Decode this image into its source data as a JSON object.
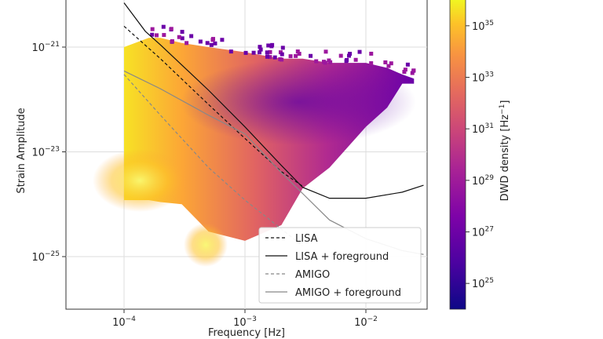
{
  "chart_data": {
    "type": "heatmap",
    "xlabel": "Frequency [Hz]",
    "ylabel": "Strain Amplitude",
    "x_scale": "log",
    "y_scale": "log",
    "xlim": [
      3e-05,
      0.03
    ],
    "ylim": [
      1e-26,
      1e-20
    ],
    "x_ticks": [
      {
        "value": 0.0001,
        "base": "10",
        "exp": "−4"
      },
      {
        "value": 0.001,
        "base": "10",
        "exp": "−3"
      },
      {
        "value": 0.01,
        "base": "10",
        "exp": "−2"
      }
    ],
    "y_ticks": [
      {
        "value": 1e-21,
        "base": "10",
        "exp": "−21"
      },
      {
        "value": 1e-23,
        "base": "10",
        "exp": "−23"
      },
      {
        "value": 1e-25,
        "base": "10",
        "exp": "−25"
      }
    ],
    "grid": true,
    "legend_placement": "bottom-right",
    "colorbar": {
      "label": "DWD density [Hz",
      "label_exp": "−1",
      "label_close": "]",
      "scale": "log",
      "range": [
        1e+24,
        1e+36
      ],
      "colormap": "plasma",
      "ticks": [
        {
          "value": 1e+25,
          "base": "10",
          "exp": "25"
        },
        {
          "value": 1e+27,
          "base": "10",
          "exp": "27"
        },
        {
          "value": 1e+29,
          "base": "10",
          "exp": "29"
        },
        {
          "value": 1e+31,
          "base": "10",
          "exp": "31"
        },
        {
          "value": 1e+33,
          "base": "10",
          "exp": "33"
        },
        {
          "value": 1e+35,
          "base": "10",
          "exp": "35"
        }
      ]
    },
    "series": [
      {
        "name": "LISA",
        "style": "dashed",
        "color": "#111111",
        "x": [
          0.0001,
          0.0002,
          0.0005,
          0.001,
          0.002,
          0.003
        ],
        "y": [
          2.5e-21,
          6e-22,
          8e-23,
          1.8e-23,
          4.2e-24,
          2.2e-24
        ]
      },
      {
        "name": "LISA + foreground",
        "style": "solid",
        "color": "#111111",
        "x": [
          0.0001,
          0.00015,
          0.0002,
          0.0005,
          0.001,
          0.002,
          0.003,
          0.005,
          0.01,
          0.02,
          0.03
        ],
        "y": [
          7e-21,
          2e-21,
          1.1e-21,
          1.5e-22,
          3e-23,
          5.5e-24,
          2.1e-24,
          1.3e-24,
          1.3e-24,
          1.7e-24,
          2.3e-24
        ]
      },
      {
        "name": "AMIGO",
        "style": "dashed",
        "color": "#888888",
        "x": [
          0.0001,
          0.0002,
          0.0005,
          0.001,
          0.003
        ],
        "y": [
          3e-22,
          5e-23,
          5e-24,
          1.2e-24,
          1.6e-25
        ]
      },
      {
        "name": "AMIGO + foreground",
        "style": "solid",
        "color": "#888888",
        "x": [
          0.0001,
          0.0002,
          0.0005,
          0.001,
          0.002,
          0.003,
          0.005,
          0.01,
          0.02,
          0.03
        ],
        "y": [
          3.5e-22,
          1.6e-22,
          5e-23,
          2.2e-23,
          4e-24,
          1.6e-24,
          5e-25,
          2.2e-25,
          1.3e-25,
          1.1e-25
        ]
      }
    ],
    "density_envelope": {
      "x": [
        0.0001,
        0.00016,
        0.0002,
        0.0003,
        0.0005,
        0.001,
        0.002,
        0.003,
        0.005,
        0.01,
        0.015,
        0.02,
        0.025
      ],
      "y_upper": [
        1e-21,
        1.5e-21,
        1.5e-21,
        1.2e-21,
        1e-21,
        8e-22,
        6e-22,
        6e-22,
        5e-22,
        5e-22,
        4e-22,
        3e-22,
        2.5e-22
      ],
      "y_lower": [
        1.2e-24,
        1.2e-24,
        1.1e-24,
        1e-24,
        3e-25,
        2e-25,
        4e-25,
        2e-24,
        5e-24,
        3e-23,
        7e-23,
        2e-22,
        2e-22
      ]
    }
  }
}
